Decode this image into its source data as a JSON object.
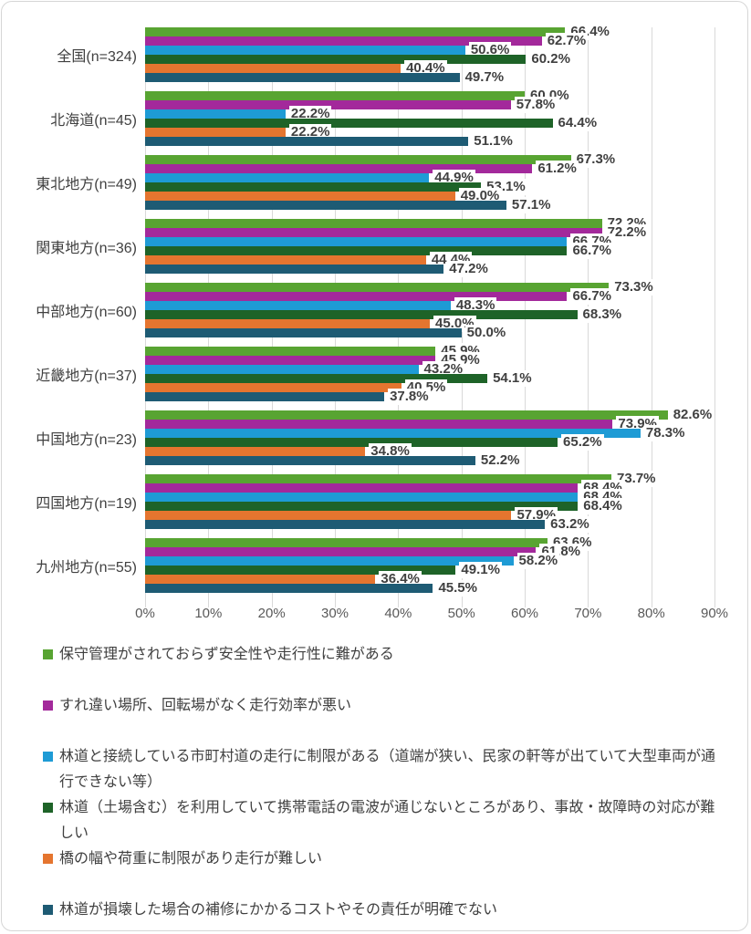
{
  "chart_data": {
    "type": "bar",
    "orientation": "horizontal",
    "title": "",
    "xlabel": "",
    "ylabel": "",
    "x_max": 90,
    "x_ticks": [
      "0%",
      "10%",
      "20%",
      "30%",
      "40%",
      "50%",
      "60%",
      "70%",
      "80%",
      "90%"
    ],
    "grid": true,
    "legend_position": "bottom",
    "value_suffix": "%",
    "categories": [
      "全国(n=324)",
      "北海道(n=45)",
      "東北地方(n=49)",
      "関東地方(n=36)",
      "中部地方(n=60)",
      "近畿地方(n=37)",
      "中国地方(n=23)",
      "四国地方(n=19)",
      "九州地方(n=55)"
    ],
    "series": [
      {
        "name": "保守管理がされておらず安全性や走行性に難がある",
        "color": "#58A432",
        "values": [
          66.4,
          60.0,
          67.3,
          72.2,
          73.3,
          45.9,
          82.6,
          73.7,
          63.6
        ]
      },
      {
        "name": "すれ違い場所、回転場がなく走行効率が悪い",
        "color": "#A3299B",
        "values": [
          62.7,
          57.8,
          61.2,
          72.2,
          66.7,
          45.9,
          73.9,
          68.4,
          61.8
        ]
      },
      {
        "name": "林道と接続している市町村道の走行に制限がある（道端が狭い、民家の軒等が出ていて大型車両が通行できない等）",
        "color": "#1E9BD5",
        "values": [
          50.6,
          22.2,
          44.9,
          66.7,
          48.3,
          43.2,
          78.3,
          68.4,
          58.2
        ]
      },
      {
        "name": "林道（土場含む）を利用していて携帯電話の電波が通じないところがあり、事故・故障時の対応が難しい",
        "color": "#1E6328",
        "values": [
          60.2,
          64.4,
          53.1,
          66.7,
          68.3,
          54.1,
          65.2,
          68.4,
          49.1
        ]
      },
      {
        "name": "橋の幅や荷重に制限があり走行が難しい",
        "color": "#E5752F",
        "values": [
          40.4,
          22.2,
          49.0,
          44.4,
          45.0,
          40.5,
          34.8,
          57.9,
          36.4
        ]
      },
      {
        "name": "林道が損壊した場合の補修にかかるコストやその責任が明確でない",
        "color": "#1E5B74",
        "values": [
          49.7,
          51.1,
          57.1,
          47.2,
          50.0,
          37.8,
          52.2,
          63.2,
          45.5
        ]
      }
    ],
    "colors": {
      "gridline": "#d9d9d9",
      "axis_text": "#595959",
      "label_text": "#404040"
    }
  }
}
